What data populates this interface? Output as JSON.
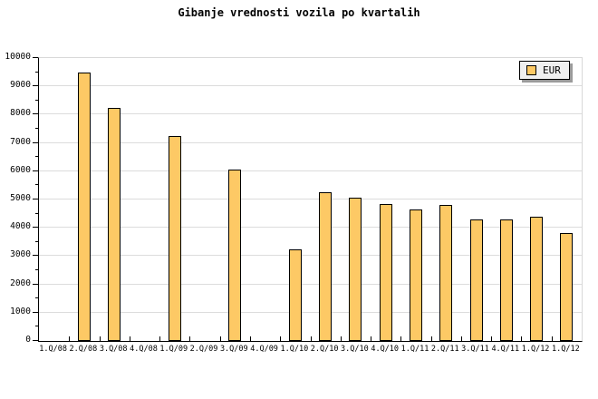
{
  "page": {
    "background": "#ffffff"
  },
  "chart_data": {
    "type": "bar",
    "title": "Gibanje vrednosti vozila po kvartalih",
    "categories": [
      "1.Q/08",
      "2.Q/08",
      "3.Q/08",
      "4.Q/08",
      "1.Q/09",
      "2.Q/09",
      "3.Q/09",
      "4.Q/09",
      "1.Q/10",
      "2.Q/10",
      "3.Q/10",
      "4.Q/10",
      "1.Q/11",
      "2.Q/11",
      "3.Q/11",
      "4.Q/11",
      "1.Q/12",
      "1.Q/12"
    ],
    "series": [
      {
        "name": "EUR",
        "values": [
          null,
          9500,
          8250,
          null,
          7250,
          null,
          6050,
          null,
          3250,
          5250,
          5050,
          4850,
          4650,
          4800,
          4300,
          4300,
          4400,
          3800
        ]
      }
    ],
    "xlabel": "",
    "ylabel": "",
    "ylim": [
      0,
      10000
    ],
    "y_major_step": 1000,
    "y_minor_step": 500,
    "y_tick_labels": [
      "0",
      "1000",
      "2000",
      "3000",
      "4000",
      "5000",
      "6000",
      "7000",
      "8000",
      "9000",
      "10000"
    ],
    "grid": "horizontal-major-only",
    "legend": {
      "label": "EUR",
      "position": "top-right-inside"
    },
    "colors": {
      "bar_fill": "#fdc965",
      "bar_border": "#000000",
      "grid": "#dcdcdc",
      "frame": "#d8d8d8",
      "axis": "#000000",
      "legend_fill": "#efefef",
      "legend_shadow": "#9a9a9a",
      "text": "#000000"
    }
  }
}
